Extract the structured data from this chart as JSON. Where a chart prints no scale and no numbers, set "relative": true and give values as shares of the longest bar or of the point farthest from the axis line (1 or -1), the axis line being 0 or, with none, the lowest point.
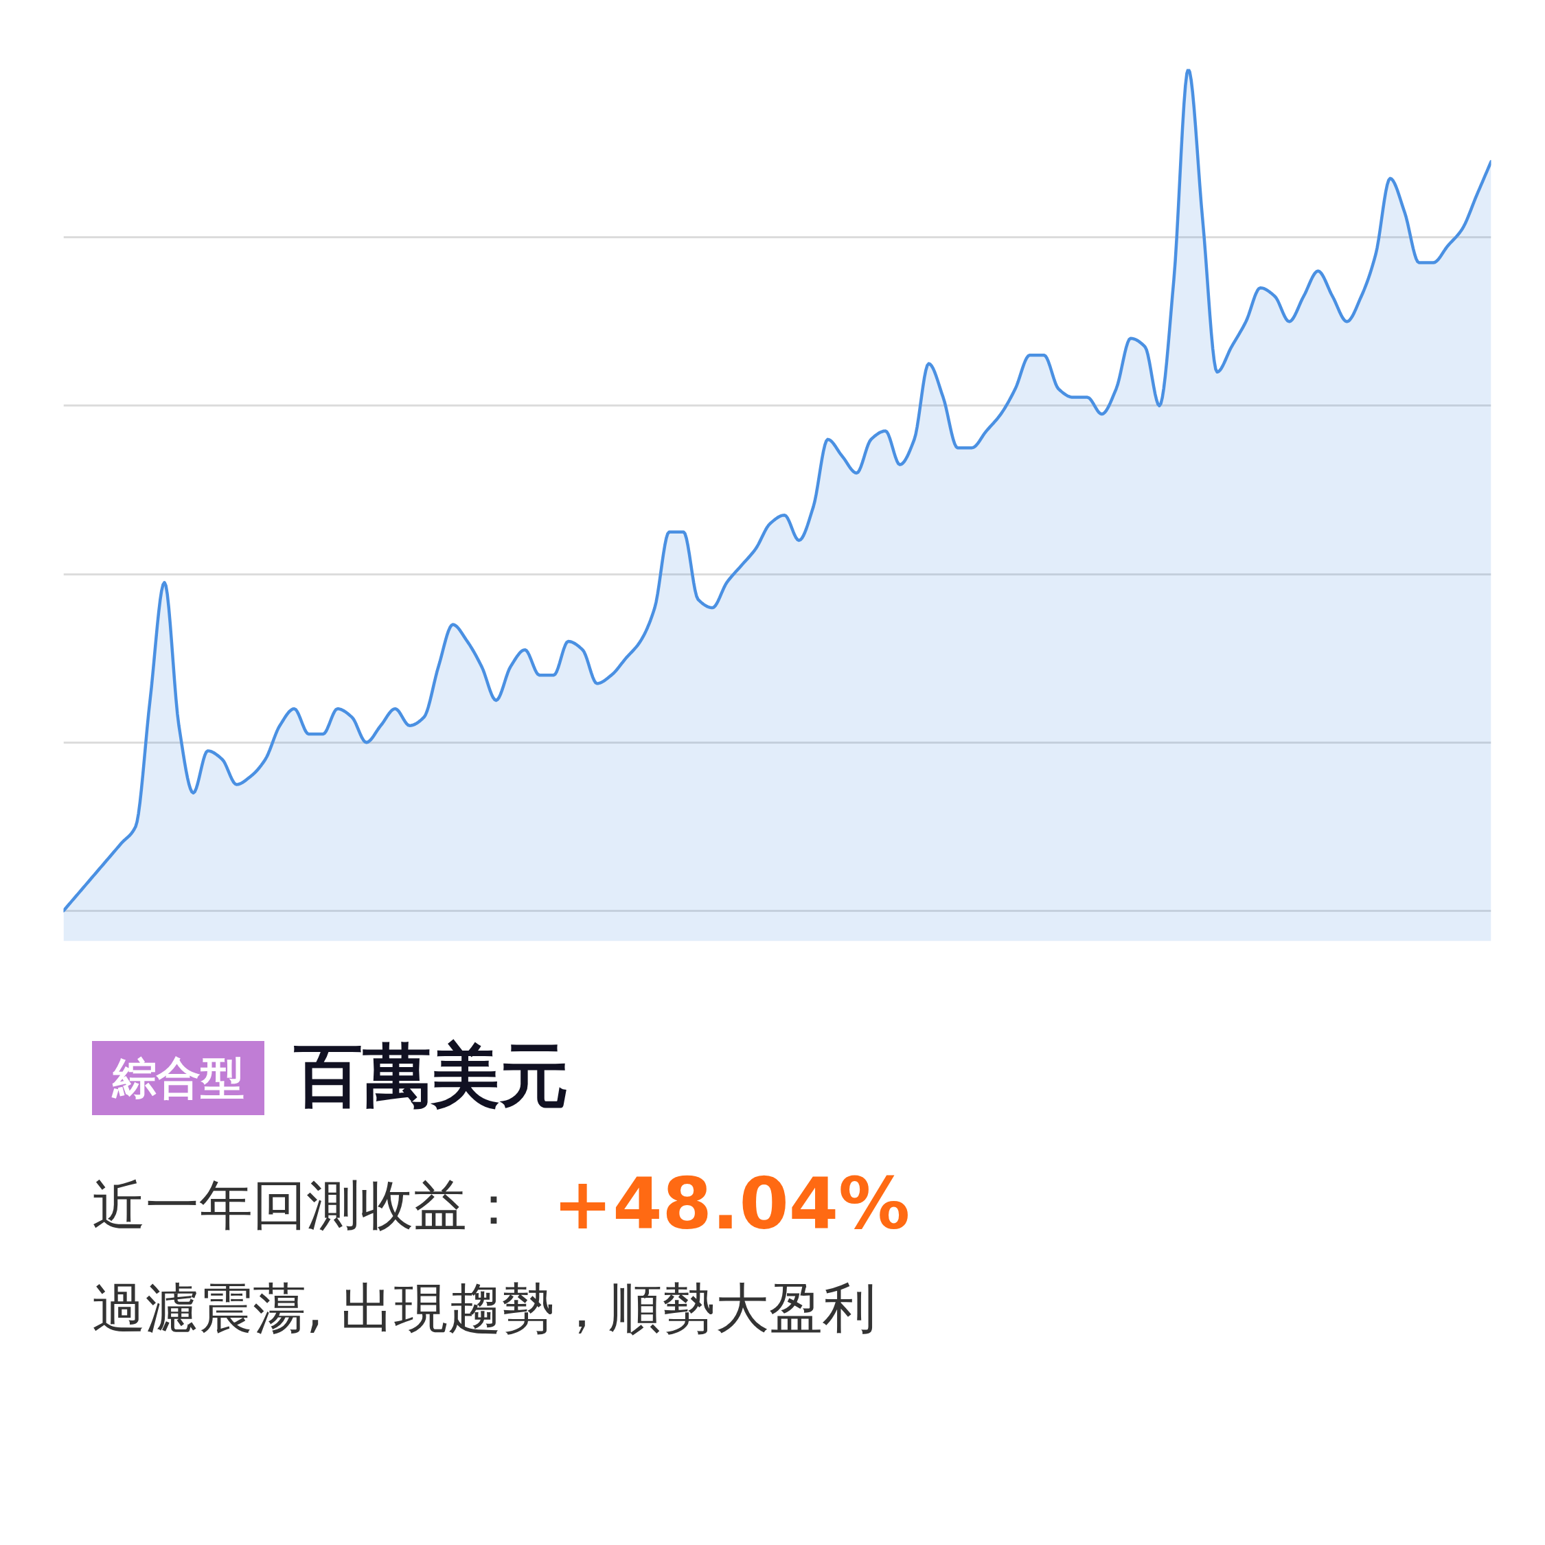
{
  "chart_data": {
    "type": "area",
    "relative": true,
    "grid": "y",
    "title": "百萬美元",
    "subtitle": "過濾震蕩, 出現趨勢，順勢大盈利",
    "annotations": [
      "綜合型",
      "近一年回測收益：",
      "+48.04%"
    ],
    "categories": [
      null,
      null,
      null,
      null,
      null,
      null,
      null,
      null,
      null,
      null,
      null,
      null,
      null,
      null,
      null,
      null,
      null,
      null,
      null,
      null,
      null,
      null,
      null,
      null,
      null,
      null,
      null,
      null,
      null,
      null,
      null,
      null,
      null,
      null,
      null,
      null,
      null,
      null,
      null,
      null,
      null,
      null,
      null,
      null,
      null,
      null,
      null,
      null,
      null,
      null,
      null,
      null,
      null,
      null,
      null,
      null,
      null,
      null,
      null,
      null,
      null,
      null,
      null,
      null,
      null,
      null,
      null,
      null,
      null,
      null,
      null,
      null,
      null,
      null,
      null,
      null,
      null,
      null,
      null,
      null,
      null,
      null,
      null,
      null,
      null,
      null,
      null,
      null,
      null,
      null,
      null,
      null,
      null,
      null,
      null,
      null,
      null,
      null,
      null,
      null
    ],
    "series": [
      {
        "color": "#4a90e2",
        "values": [
          0,
          0.02,
          0.04,
          0.06,
          0.08,
          0.1,
          0.25,
          0.39,
          0.22,
          0.14,
          0.19,
          0.18,
          0.15,
          0.16,
          0.18,
          0.22,
          0.24,
          0.21,
          0.21,
          0.24,
          0.23,
          0.2,
          0.22,
          0.24,
          0.22,
          0.23,
          0.29,
          0.34,
          0.32,
          0.29,
          0.25,
          0.29,
          0.31,
          0.28,
          0.28,
          0.32,
          0.31,
          0.27,
          0.28,
          0.3,
          0.32,
          0.36,
          0.45,
          0.45,
          0.37,
          0.36,
          0.39,
          0.41,
          0.43,
          0.46,
          0.47,
          0.44,
          0.48,
          0.56,
          0.54,
          0.52,
          0.56,
          0.57,
          0.53,
          0.56,
          0.65,
          0.61,
          0.55,
          0.55,
          0.57,
          0.59,
          0.62,
          0.66,
          0.66,
          0.62,
          0.61,
          0.61,
          0.59,
          0.62,
          0.68,
          0.67,
          0.6,
          0.75,
          1,
          0.82,
          0.64,
          0.67,
          0.7,
          0.74,
          0.73,
          0.7,
          0.73,
          0.76,
          0.73,
          0.7,
          0.73,
          0.78,
          0.87,
          0.83,
          0.77,
          0.77,
          0.79,
          0.81,
          0.85,
          0.89
        ]
      }
    ]
  }
}
